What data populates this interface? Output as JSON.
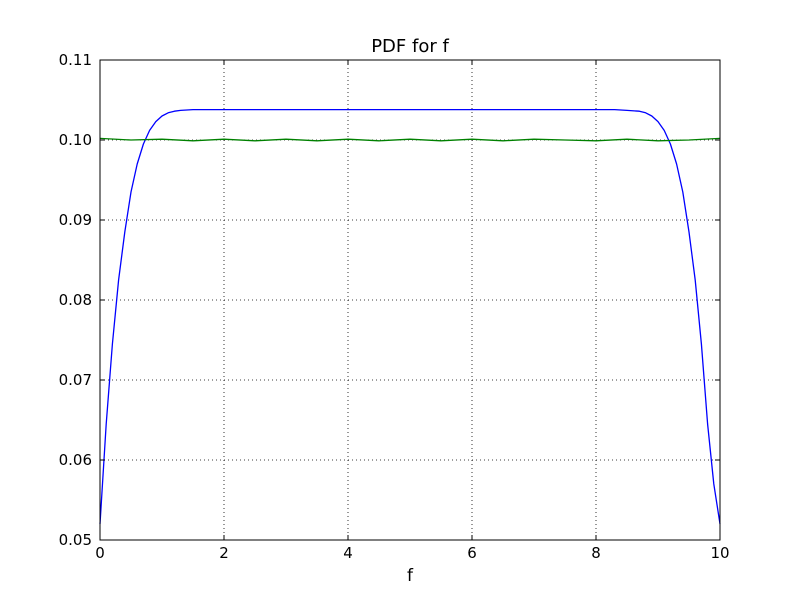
{
  "chart_data": {
    "type": "line",
    "title": "PDF for f",
    "xlabel": "f",
    "ylabel": "",
    "xlim": [
      0,
      10
    ],
    "ylim": [
      0.05,
      0.11
    ],
    "x_ticks": [
      "0",
      "2",
      "4",
      "6",
      "8",
      "10"
    ],
    "y_ticks": [
      "0.05",
      "0.06",
      "0.07",
      "0.08",
      "0.09",
      "0.10",
      "0.11"
    ],
    "grid": true,
    "series": [
      {
        "color": "#0000ff",
        "x": [
          0,
          0.1,
          0.2,
          0.3,
          0.4,
          0.5,
          0.6,
          0.7,
          0.8,
          0.9,
          1.0,
          1.1,
          1.2,
          1.3,
          1.5,
          1.7,
          2.0,
          3.0,
          4.0,
          5.0,
          6.0,
          7.0,
          8.0,
          8.3,
          8.5,
          8.7,
          8.8,
          8.9,
          9.0,
          9.1,
          9.2,
          9.3,
          9.4,
          9.5,
          9.6,
          9.7,
          9.8,
          9.9,
          10.0
        ],
        "y": [
          0.052,
          0.0645,
          0.0745,
          0.0825,
          0.0885,
          0.0935,
          0.097,
          0.0995,
          0.1012,
          0.1023,
          0.103,
          0.1034,
          0.1036,
          0.1037,
          0.1038,
          0.1038,
          0.1038,
          0.1038,
          0.1038,
          0.1038,
          0.1038,
          0.1038,
          0.1038,
          0.1038,
          0.1037,
          0.1036,
          0.1034,
          0.103,
          0.1023,
          0.1012,
          0.0995,
          0.097,
          0.0935,
          0.0885,
          0.0825,
          0.0745,
          0.0645,
          0.057,
          0.052
        ]
      },
      {
        "color": "#008000",
        "x": [
          0,
          0.5,
          1.0,
          1.5,
          2.0,
          2.5,
          3.0,
          3.5,
          4.0,
          4.5,
          5.0,
          5.5,
          6.0,
          6.5,
          7.0,
          7.5,
          8.0,
          8.5,
          9.0,
          9.5,
          10.0
        ],
        "y": [
          0.1002,
          0.1,
          0.1001,
          0.0999,
          0.1001,
          0.0999,
          0.1001,
          0.0999,
          0.1001,
          0.0999,
          0.1001,
          0.0999,
          0.1001,
          0.0999,
          0.1001,
          0.1,
          0.0999,
          0.1001,
          0.0999,
          0.1,
          0.1002
        ]
      }
    ]
  }
}
